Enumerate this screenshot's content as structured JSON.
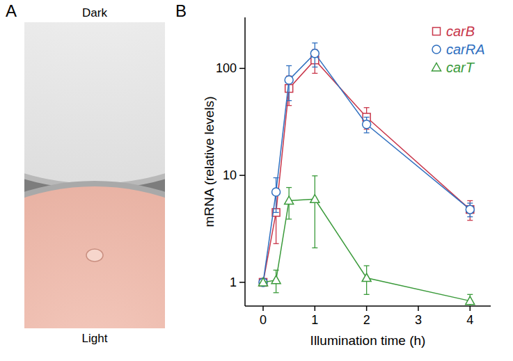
{
  "panel_labels": [
    "A",
    "B"
  ],
  "photo": {
    "top_label": "Dark",
    "bottom_label": "Light"
  },
  "chart_data": {
    "type": "line",
    "x_label": "Illumination time (h)",
    "y_label": "mRNA (relative levels)",
    "x": [
      0,
      0.25,
      0.5,
      1,
      2,
      4
    ],
    "xlim": [
      -0.35,
      4.4
    ],
    "xticks": [
      0,
      1,
      2,
      3,
      4
    ],
    "ylim": [
      0.6,
      300
    ],
    "yticks": [
      1,
      10,
      100
    ],
    "log": "y",
    "legend": "top-right",
    "series": [
      {
        "name": "carB",
        "color": "#c8364a",
        "marker": "square",
        "values": [
          1,
          4.5,
          65,
          120,
          35,
          4.8
        ],
        "errors": [
          0,
          2.2,
          20,
          30,
          8,
          1
        ]
      },
      {
        "name": "carRA",
        "color": "#2f6fbf",
        "marker": "circle",
        "values": [
          1,
          7,
          78,
          138,
          30,
          4.8
        ],
        "errors": [
          0,
          2.5,
          28,
          35,
          5,
          0.7
        ]
      },
      {
        "name": "carT",
        "color": "#3a9a3a",
        "marker": "triangle",
        "values": [
          1,
          1.05,
          5.8,
          6,
          1.1,
          0.67
        ],
        "errors": [
          0,
          0.25,
          1.9,
          3.9,
          0.33,
          0.1
        ]
      }
    ]
  }
}
